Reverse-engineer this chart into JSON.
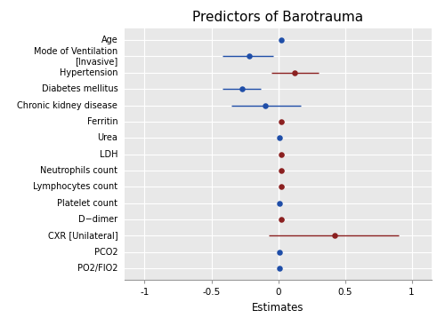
{
  "title": "Predictors of Barotrauma",
  "xlabel": "Estimates",
  "variables": [
    "Age",
    "Mode of Ventilation\n[Invasive]",
    "Hypertension",
    "Diabetes mellitus",
    "Chronic kidney disease",
    "Ferritin",
    "Urea",
    "LDH",
    "Neutrophils count",
    "Lymphocytes count",
    "Platelet count",
    "D−dimer",
    "CXR [Unilateral]",
    "PCO2",
    "PO2/FIO2"
  ],
  "estimates": [
    0.02,
    -0.22,
    0.12,
    -0.27,
    -0.1,
    0.02,
    0.01,
    0.02,
    0.02,
    0.02,
    0.01,
    0.02,
    0.42,
    0.01,
    0.01
  ],
  "ci_lower": [
    0.02,
    -0.42,
    -0.05,
    -0.42,
    -0.35,
    0.01,
    0.0,
    0.01,
    0.01,
    0.01,
    0.0,
    0.01,
    -0.07,
    0.0,
    0.0
  ],
  "ci_upper": [
    0.02,
    -0.04,
    0.3,
    -0.13,
    0.17,
    0.04,
    0.02,
    0.04,
    0.04,
    0.04,
    0.02,
    0.04,
    0.9,
    0.02,
    0.02
  ],
  "colors": [
    "#1f4ea8",
    "#1f4ea8",
    "#8b2020",
    "#1f4ea8",
    "#1f4ea8",
    "#8b2020",
    "#1f4ea8",
    "#8b2020",
    "#8b2020",
    "#8b2020",
    "#1f4ea8",
    "#8b2020",
    "#8b2020",
    "#1f4ea8",
    "#1f4ea8"
  ],
  "bg_color": "#e8e8e8",
  "xlim": [
    -1.15,
    1.15
  ],
  "xticks": [
    -1,
    -0.5,
    0,
    0.5,
    1
  ],
  "xtick_labels": [
    "-1",
    "-0.5",
    "0",
    "0.5",
    "1"
  ],
  "title_fontsize": 11,
  "label_fontsize": 7,
  "tick_fontsize": 7.5,
  "xlabel_fontsize": 8.5
}
